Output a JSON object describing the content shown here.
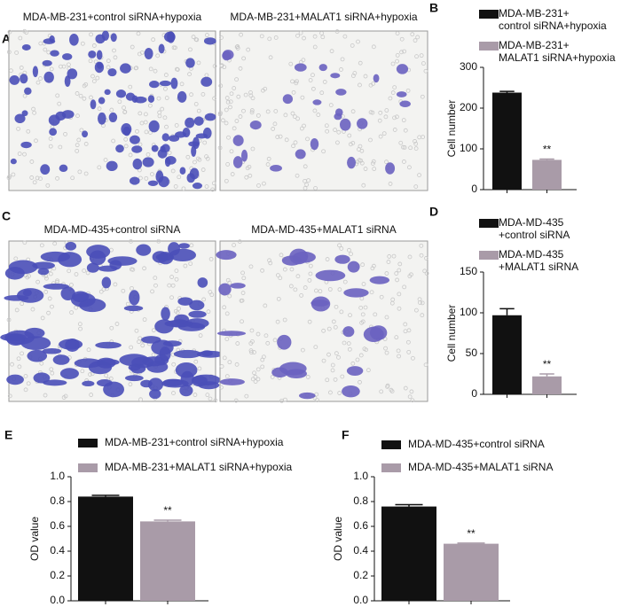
{
  "images": [
    {
      "panel": "A",
      "captions": [
        "MDA-MB-231+control siRNA+hypoxia",
        "MDA-MB-231+MALAT1 siRNA+hypoxia"
      ]
    },
    {
      "panel": "C",
      "captions": [
        "MDA-MD-435+control siRNA",
        "MDA-MD-435+MALAT1 siRNA"
      ]
    }
  ],
  "chart_data": [
    {
      "type": "bar",
      "panel": "B",
      "y_label": "Cell number",
      "ylim": [
        0,
        300
      ],
      "yticks": [
        0,
        100,
        200,
        300
      ],
      "series": [
        {
          "name": "MDA-MB-231+\ncontrol siRNA+hypoxia",
          "color": "#111111",
          "values": [
            238
          ],
          "errors": [
            3
          ]
        },
        {
          "name": "MDA-MB-231+\nMALAT1 siRNA+hypoxia",
          "color": "#a99ba8",
          "values": [
            73
          ],
          "errors": [
            2
          ],
          "annotation": "**"
        }
      ]
    },
    {
      "type": "bar",
      "panel": "D",
      "y_label": "Cell number",
      "ylim": [
        0,
        150
      ],
      "yticks": [
        0,
        50,
        100,
        150
      ],
      "series": [
        {
          "name": "MDA-MD-435\n+control siRNA",
          "color": "#111111",
          "values": [
            97
          ],
          "errors": [
            8
          ]
        },
        {
          "name": "MDA-MD-435\n+MALAT1 siRNA",
          "color": "#a99ba8",
          "values": [
            22
          ],
          "errors": [
            3
          ],
          "annotation": "**"
        }
      ]
    },
    {
      "type": "bar",
      "panel": "E",
      "y_label": "OD value",
      "ylim": [
        0,
        1
      ],
      "yticks": [
        {
          "value": 0,
          "label": "0.0"
        },
        0.2,
        0.4,
        0.6,
        0.8,
        {
          "value": 1,
          "label": "1.0"
        }
      ],
      "series": [
        {
          "name": "MDA-MB-231+control siRNA+hypoxia",
          "color": "#111111",
          "values": [
            0.84
          ],
          "errors": [
            0.01
          ]
        },
        {
          "name": "MDA-MB-231+MALAT1 siRNA+hypoxia",
          "color": "#a99ba8",
          "values": [
            0.64
          ],
          "errors": [
            0.01
          ],
          "annotation": "**"
        }
      ]
    },
    {
      "type": "bar",
      "panel": "F",
      "y_label": "OD value",
      "ylim": [
        0,
        1
      ],
      "yticks": [
        {
          "value": 0,
          "label": "0.0"
        },
        0.2,
        0.4,
        0.6,
        0.8,
        {
          "value": 1,
          "label": "1.0"
        }
      ],
      "series": [
        {
          "name": "MDA-MD-435+control siRNA",
          "color": "#111111",
          "values": [
            0.76
          ],
          "errors": [
            0.015
          ]
        },
        {
          "name": "MDA-MD-435+MALAT1 siRNA",
          "color": "#a99ba8",
          "values": [
            0.46
          ],
          "errors": [
            0.005
          ],
          "annotation": "**"
        }
      ]
    }
  ]
}
